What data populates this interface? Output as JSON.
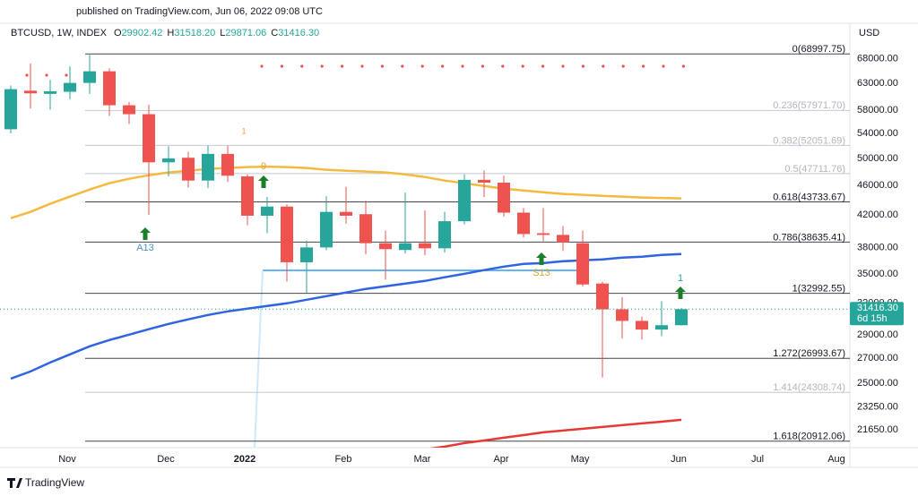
{
  "header": {
    "published": "published on TradingView.com, Jun 06, 2022 09:08 UTC"
  },
  "chart_data": {
    "type": "candlestick",
    "title": "BTCUSD, 1W, INDEX",
    "ohlc_legend": [
      {
        "key": "O",
        "value": "29902.42"
      },
      {
        "key": "H",
        "value": "31518.20"
      },
      {
        "key": "L",
        "value": "29871.06"
      },
      {
        "key": "C",
        "value": "31416.30"
      }
    ],
    "y_axis_label": "USD",
    "log_scale": true,
    "grid": false,
    "up_color": "#26a69a",
    "down_color": "#ef5350",
    "categories": [
      null,
      null,
      null,
      "Nov",
      null,
      null,
      null,
      null,
      "Dec",
      null,
      null,
      null,
      "2022",
      null,
      null,
      null,
      null,
      "Feb",
      null,
      null,
      null,
      "Mar",
      null,
      null,
      null,
      "Apr",
      null,
      null,
      null,
      "May",
      null,
      null,
      null,
      null,
      "Jun",
      null,
      null,
      null,
      "Jul",
      null,
      null,
      null,
      "Aug",
      null
    ],
    "open": [
      54700,
      61600,
      61000,
      61400,
      63100,
      65400,
      58900,
      57300,
      49400,
      50100,
      46700,
      50700,
      47300,
      41900,
      43100,
      36300,
      38000,
      42400,
      42100,
      38500,
      37700,
      38500,
      37900,
      41200,
      46800,
      46400,
      42300,
      39700,
      39500,
      38500,
      34000,
      31400,
      30300,
      29500,
      29902.42,
      null,
      null,
      null,
      null,
      null,
      null,
      null,
      null,
      null
    ],
    "high": [
      62600,
      67000,
      63700,
      66400,
      68800,
      66000,
      59500,
      59000,
      51900,
      51000,
      52000,
      52000,
      47600,
      44400,
      43400,
      38800,
      44500,
      45800,
      43900,
      40000,
      45000,
      42600,
      42400,
      47600,
      48200,
      47400,
      42900,
      42900,
      40600,
      40000,
      34200,
      32600,
      30700,
      32200,
      31518.2,
      null,
      null,
      null,
      null,
      null,
      null,
      null,
      null,
      null
    ],
    "low": [
      54000,
      58300,
      58100,
      60000,
      61000,
      57000,
      55600,
      42000,
      47300,
      45700,
      45600,
      46500,
      40700,
      39700,
      34200,
      33050,
      37700,
      40900,
      37200,
      34400,
      37300,
      37100,
      37400,
      40800,
      44400,
      41800,
      39200,
      38600,
      37600,
      33700,
      25450,
      28700,
      28600,
      28900,
      29871.06,
      null,
      null,
      null,
      null,
      null,
      null,
      null,
      null,
      null
    ],
    "close": [
      61900,
      61100,
      61500,
      63100,
      65400,
      58900,
      57300,
      49400,
      50000,
      46700,
      50700,
      47400,
      41900,
      43100,
      36300,
      38000,
      42400,
      41900,
      38500,
      37800,
      38500,
      37900,
      41200,
      46800,
      46400,
      42300,
      39600,
      39500,
      38600,
      33900,
      31400,
      30300,
      29500,
      29900,
      31416.3,
      null,
      null,
      null,
      null,
      null,
      null,
      null,
      null,
      null
    ],
    "overlays": [
      {
        "color": "#f5b940",
        "values": [
          41590,
          42400,
          43470,
          44440,
          45430,
          46320,
          46960,
          47480,
          47880,
          48140,
          48410,
          48550,
          48680,
          48750,
          48680,
          48550,
          48280,
          48140,
          48010,
          47880,
          47610,
          47220,
          46700,
          46320,
          45930,
          45550,
          45300,
          45050,
          44810,
          44690,
          44560,
          44440,
          44320,
          44260,
          44200,
          null,
          null,
          null,
          null,
          null,
          null,
          null,
          null,
          null
        ]
      },
      {
        "color": "#2f63e0",
        "values": [
          25360,
          25930,
          26650,
          27330,
          28020,
          28560,
          29040,
          29530,
          30020,
          30440,
          30860,
          31200,
          31460,
          31730,
          31990,
          32340,
          32700,
          33070,
          33440,
          33710,
          33990,
          34270,
          34660,
          35040,
          35430,
          35820,
          36120,
          36210,
          36420,
          36520,
          36620,
          36830,
          36930,
          37130,
          37240,
          null,
          null,
          null,
          null,
          null,
          null,
          null,
          null,
          null
        ]
      },
      {
        "color": "#e53935",
        "values": [
          null,
          null,
          null,
          null,
          null,
          null,
          null,
          null,
          null,
          null,
          null,
          null,
          null,
          null,
          null,
          null,
          null,
          null,
          null,
          null,
          null,
          20390,
          20560,
          20790,
          20960,
          21140,
          21310,
          21490,
          21610,
          21730,
          21850,
          21970,
          22090,
          22210,
          22340,
          null,
          null,
          null,
          null,
          null,
          null,
          null,
          null,
          null
        ]
      }
    ],
    "fib_levels": [
      {
        "label": "0(68997.75)",
        "value": 68997.75,
        "color": "#434651"
      },
      {
        "label": "0.236(57971.70)",
        "value": 57971.7,
        "color": "#c5c8cf"
      },
      {
        "label": "0.382(52051.69)",
        "value": 52051.69,
        "color": "#c5c8cf"
      },
      {
        "label": "0.5(47711.76)",
        "value": 47711.76,
        "color": "#c5c8cf"
      },
      {
        "label": "0.618(43733.67)",
        "value": 43733.67,
        "color": "#434651"
      },
      {
        "label": "0.786(38635.41)",
        "value": 38635.41,
        "color": "#434651"
      },
      {
        "label": "1(32992.55)",
        "value": 32992.55,
        "color": "#434651"
      },
      {
        "label": "1.272(26993.67)",
        "value": 26993.67,
        "color": "#434651"
      },
      {
        "label": "1.414(24308.74)",
        "value": 24308.74,
        "color": "#c5c8cf"
      },
      {
        "label": "1.618(20912.06)",
        "value": 20912.06,
        "color": "#434651"
      }
    ],
    "annotations": [
      "A13",
      "9",
      "S13",
      "1",
      "1"
    ],
    "last_price": {
      "label": "31416.30",
      "countdown": "6d 15h"
    },
    "ylim": [
      20500,
      75000
    ],
    "yticks": [
      {
        "value": 68000,
        "label": "68000.00"
      },
      {
        "value": 63000,
        "label": "63000.00"
      },
      {
        "value": 58000,
        "label": "58000.00"
      },
      {
        "value": 54000,
        "label": "54000.00"
      },
      {
        "value": 50000,
        "label": "50000.00"
      },
      {
        "value": 46000,
        "label": "46000.00"
      },
      {
        "value": 42000,
        "label": "42000.00"
      },
      {
        "value": 38000,
        "label": "38000.00"
      },
      {
        "value": 35000,
        "label": "35000.00"
      },
      {
        "value": 32000,
        "label": "32000.00"
      },
      {
        "value": 29000,
        "label": "29000.00"
      },
      {
        "value": 27000,
        "label": "27000.00"
      },
      {
        "value": 25000,
        "label": "25000.00"
      },
      {
        "value": 23250,
        "label": "23250.00"
      },
      {
        "value": 21650,
        "label": "21650.00"
      }
    ]
  },
  "footer": {
    "brand": "TradingView"
  }
}
